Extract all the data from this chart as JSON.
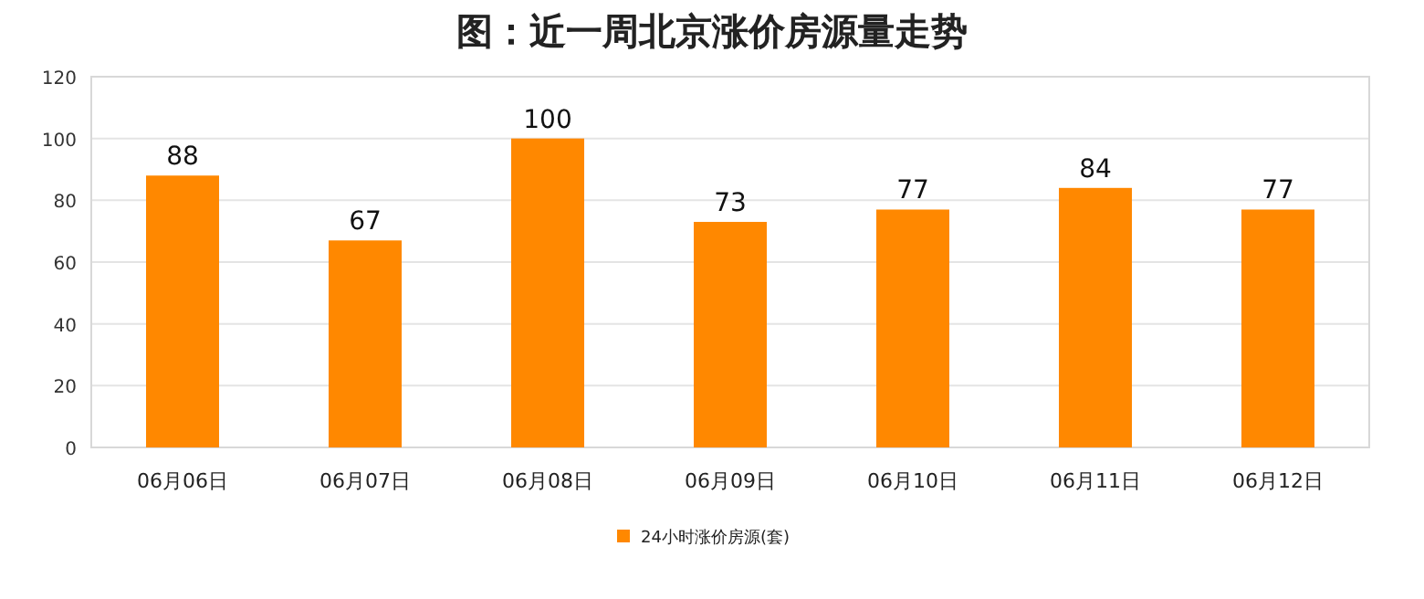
{
  "chart_data": {
    "type": "bar",
    "title": "图：近一周北京涨价房源量走势",
    "categories": [
      "06月06日",
      "06月07日",
      "06月08日",
      "06月09日",
      "06月10日",
      "06月11日",
      "06月12日"
    ],
    "series": [
      {
        "name": "24小时涨价房源(套)",
        "color": "#ff8800",
        "values": [
          88,
          67,
          100,
          73,
          77,
          84,
          77
        ]
      }
    ],
    "ylim": [
      0,
      120
    ],
    "yticks": [
      0,
      20,
      40,
      60,
      80,
      100,
      120
    ],
    "grid": "y",
    "legend": "bottom",
    "data_labels": true
  }
}
